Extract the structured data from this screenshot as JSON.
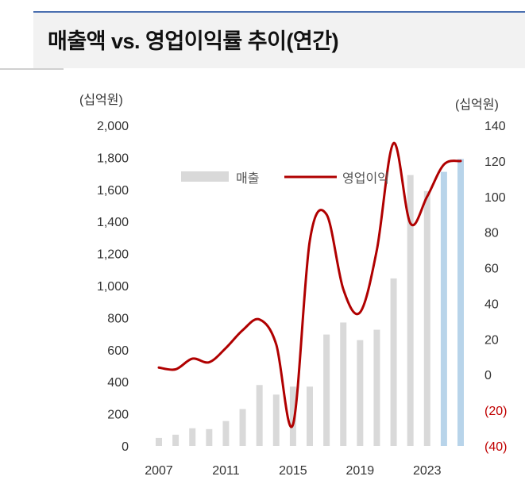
{
  "header": {
    "title": "매출액 vs. 영업이익률 추이(연간)"
  },
  "chart_data": {
    "type": "bar+line",
    "title": "매출액 vs. 영업이익률 추이(연간)",
    "y_left_unit": "(십억원)",
    "y_right_unit": "(십억원)",
    "ylim_left": [
      0,
      2000
    ],
    "ylim_right": [
      -40,
      140
    ],
    "y_left_ticks": [
      "2,000",
      "1,800",
      "1,600",
      "1,400",
      "1,200",
      "1,000",
      "800",
      "600",
      "400",
      "200",
      "0"
    ],
    "y_right_ticks": [
      "140",
      "120",
      "100",
      "80",
      "60",
      "40",
      "20",
      "0",
      "(20)",
      "(40)"
    ],
    "x_ticks": [
      "2007",
      "2011",
      "2015",
      "2019",
      "2023"
    ],
    "legend": [
      "매출",
      "영업이익"
    ],
    "grid": false,
    "legend_position": "top-center",
    "colors": {
      "bar": "#d9d9d9",
      "bar_forecast": "#b8d4ea",
      "line": "#b00000",
      "negative_tick": "#c00000"
    },
    "x": [
      2007,
      2008,
      2009,
      2010,
      2011,
      2012,
      2013,
      2014,
      2015,
      2016,
      2017,
      2018,
      2019,
      2020,
      2021,
      2022,
      2023,
      2024,
      2025
    ],
    "series": [
      {
        "name": "매출",
        "axis": "left",
        "values": [
          50,
          70,
          110,
          105,
          155,
          230,
          380,
          320,
          370,
          370,
          695,
          770,
          660,
          725,
          1045,
          1690,
          1590,
          1710,
          1790
        ],
        "forecast_from_index": 17
      },
      {
        "name": "영업이익",
        "axis": "right",
        "values": [
          4,
          3,
          9,
          7,
          15,
          25,
          31,
          17,
          -28,
          75,
          90,
          48,
          35,
          70,
          130,
          85,
          100,
          118,
          120
        ]
      }
    ]
  }
}
